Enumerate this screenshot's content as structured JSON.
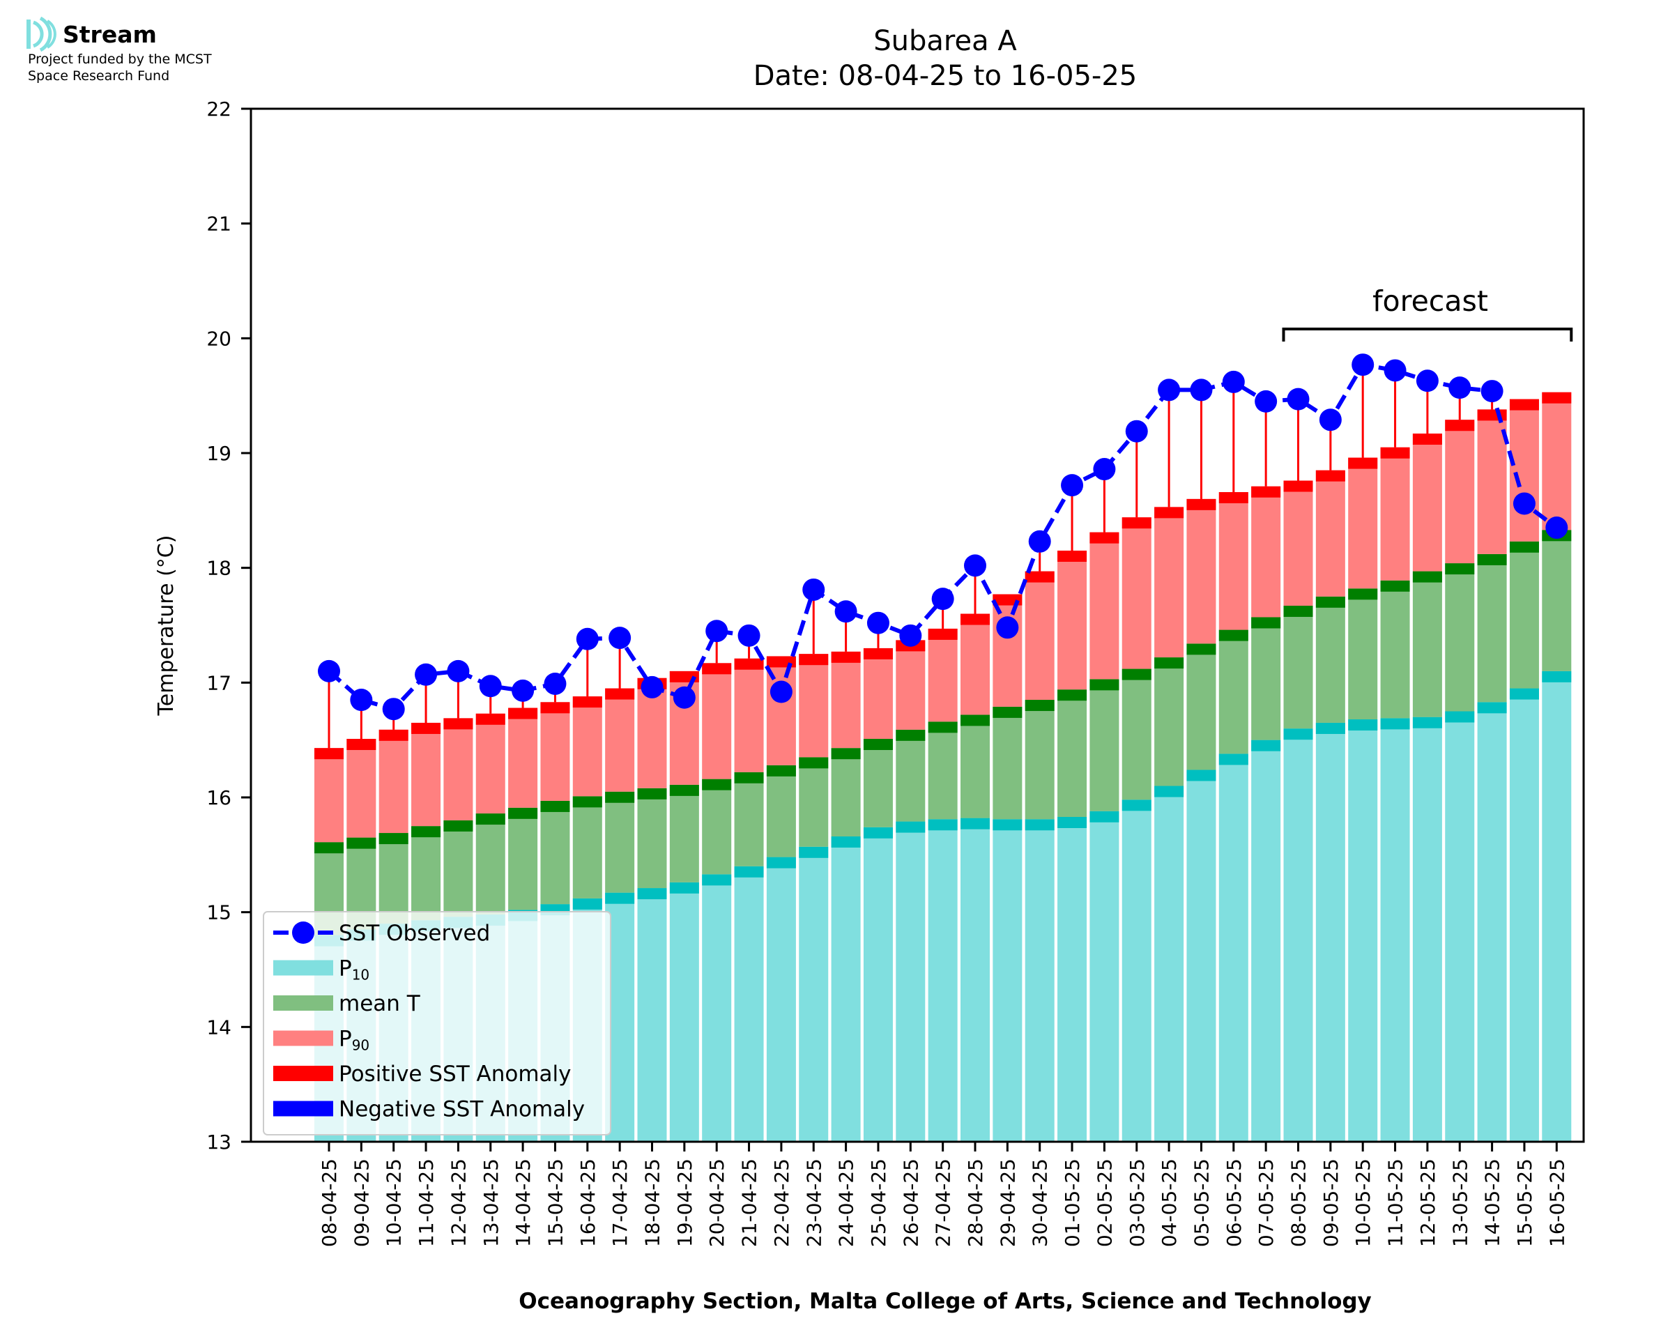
{
  "header": {
    "logo_name": "Stream",
    "logo_tagline_1": "Project funded by the MCST",
    "logo_tagline_2": "Space Research Fund"
  },
  "colors": {
    "p10": "#80dfdf",
    "p10_edge": "#00bfc0",
    "mean": "#80bf80",
    "mean_edge": "#007f00",
    "p90": "#ff8080",
    "p90_edge": "#ff0000",
    "observed": "#0000ff",
    "positive_anomaly": "#ff0000",
    "negative_anomaly": "#0000ff"
  },
  "chart_data": {
    "type": "bar",
    "title": "Subarea A",
    "subtitle": "Date: 08-04-25 to 16-05-25",
    "xlabel": "Oceanography Section, Malta College of Arts, Science and Technology",
    "ylabel": "Temperature (°C)",
    "ylim": [
      13,
      22
    ],
    "yticks": [
      13,
      14,
      15,
      16,
      17,
      18,
      19,
      20,
      21,
      22
    ],
    "grid": false,
    "legend_position": "lower-left",
    "forecast_label": "forecast",
    "forecast_range": [
      "08-05-25",
      "16-05-25"
    ],
    "categories": [
      "08-04-25",
      "09-04-25",
      "10-04-25",
      "11-04-25",
      "12-04-25",
      "13-04-25",
      "14-04-25",
      "15-04-25",
      "16-04-25",
      "17-04-25",
      "18-04-25",
      "19-04-25",
      "20-04-25",
      "21-04-25",
      "22-04-25",
      "23-04-25",
      "24-04-25",
      "25-04-25",
      "26-04-25",
      "27-04-25",
      "28-04-25",
      "29-04-25",
      "30-04-25",
      "01-05-25",
      "02-05-25",
      "03-05-25",
      "04-05-25",
      "05-05-25",
      "06-05-25",
      "07-05-25",
      "08-05-25",
      "09-05-25",
      "10-05-25",
      "11-05-25",
      "12-05-25",
      "13-05-25",
      "14-05-25",
      "15-05-25",
      "16-05-25"
    ],
    "series": [
      {
        "name": "P10",
        "legend_label": "P",
        "legend_sub": "10",
        "values": [
          14.8,
          14.85,
          14.9,
          14.93,
          14.96,
          14.98,
          15.02,
          15.07,
          15.12,
          15.17,
          15.21,
          15.26,
          15.33,
          15.4,
          15.48,
          15.57,
          15.66,
          15.74,
          15.79,
          15.81,
          15.82,
          15.81,
          15.81,
          15.83,
          15.88,
          15.98,
          16.1,
          16.24,
          16.38,
          16.5,
          16.6,
          16.65,
          16.68,
          16.69,
          16.7,
          16.75,
          16.83,
          16.95,
          17.1
        ]
      },
      {
        "name": "mean T",
        "legend_label": "mean T",
        "values": [
          15.61,
          15.65,
          15.69,
          15.75,
          15.8,
          15.86,
          15.91,
          15.97,
          16.01,
          16.05,
          16.08,
          16.11,
          16.16,
          16.22,
          16.28,
          16.35,
          16.43,
          16.51,
          16.59,
          16.66,
          16.72,
          16.79,
          16.85,
          16.94,
          17.03,
          17.12,
          17.22,
          17.34,
          17.46,
          17.57,
          17.67,
          17.75,
          17.82,
          17.89,
          17.97,
          18.04,
          18.12,
          18.23,
          18.33
        ]
      },
      {
        "name": "P90",
        "legend_label": "P",
        "legend_sub": "90",
        "values": [
          16.43,
          16.51,
          16.59,
          16.65,
          16.69,
          16.73,
          16.78,
          16.83,
          16.88,
          16.95,
          17.04,
          17.1,
          17.17,
          17.21,
          17.23,
          17.25,
          17.27,
          17.3,
          17.37,
          17.47,
          17.6,
          17.77,
          17.97,
          18.15,
          18.31,
          18.44,
          18.53,
          18.6,
          18.66,
          18.71,
          18.76,
          18.85,
          18.96,
          19.05,
          19.17,
          19.29,
          19.38,
          19.47,
          19.53
        ]
      },
      {
        "name": "SST Observed",
        "legend_label": "SST Observed",
        "values": [
          17.1,
          16.85,
          16.77,
          17.07,
          17.1,
          16.97,
          16.93,
          16.99,
          17.38,
          17.39,
          16.96,
          16.87,
          17.45,
          17.41,
          16.92,
          17.81,
          17.62,
          17.52,
          17.41,
          17.73,
          18.02,
          17.48,
          18.23,
          18.72,
          18.86,
          19.19,
          19.55,
          19.55,
          19.62,
          19.45,
          19.47,
          19.29,
          19.77,
          19.72,
          19.63,
          19.57,
          19.54,
          18.56,
          18.35
        ]
      }
    ],
    "legend": [
      {
        "label": "SST Observed"
      },
      {
        "label": "P",
        "sub": "10"
      },
      {
        "label": "mean T"
      },
      {
        "label": "P",
        "sub": "90"
      },
      {
        "label": "Positive SST Anomaly"
      },
      {
        "label": "Negative SST Anomaly"
      }
    ]
  }
}
